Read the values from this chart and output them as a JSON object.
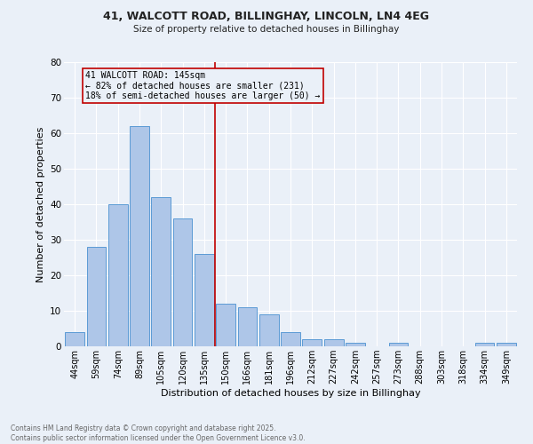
{
  "title_line1": "41, WALCOTT ROAD, BILLINGHAY, LINCOLN, LN4 4EG",
  "title_line2": "Size of property relative to detached houses in Billinghay",
  "xlabel": "Distribution of detached houses by size in Billinghay",
  "ylabel": "Number of detached properties",
  "footer_line1": "Contains HM Land Registry data © Crown copyright and database right 2025.",
  "footer_line2": "Contains public sector information licensed under the Open Government Licence v3.0.",
  "bar_labels": [
    "44sqm",
    "59sqm",
    "74sqm",
    "89sqm",
    "105sqm",
    "120sqm",
    "135sqm",
    "150sqm",
    "166sqm",
    "181sqm",
    "196sqm",
    "212sqm",
    "227sqm",
    "242sqm",
    "257sqm",
    "273sqm",
    "288sqm",
    "303sqm",
    "318sqm",
    "334sqm",
    "349sqm"
  ],
  "bar_values": [
    4,
    28,
    40,
    62,
    42,
    36,
    26,
    12,
    11,
    9,
    4,
    2,
    2,
    1,
    0,
    1,
    0,
    0,
    0,
    1,
    1
  ],
  "bar_face_color": "#aec6e8",
  "bar_edge_color": "#5b9bd5",
  "background_color": "#eaf0f8",
  "grid_color": "#ffffff",
  "ref_line_bar_index": 7,
  "ref_line_color": "#c00000",
  "annotation_text": "41 WALCOTT ROAD: 145sqm\n← 82% of detached houses are smaller (231)\n18% of semi-detached houses are larger (50) →",
  "annotation_box_color": "#c00000",
  "ylim": [
    0,
    80
  ],
  "yticks": [
    0,
    10,
    20,
    30,
    40,
    50,
    60,
    70,
    80
  ]
}
